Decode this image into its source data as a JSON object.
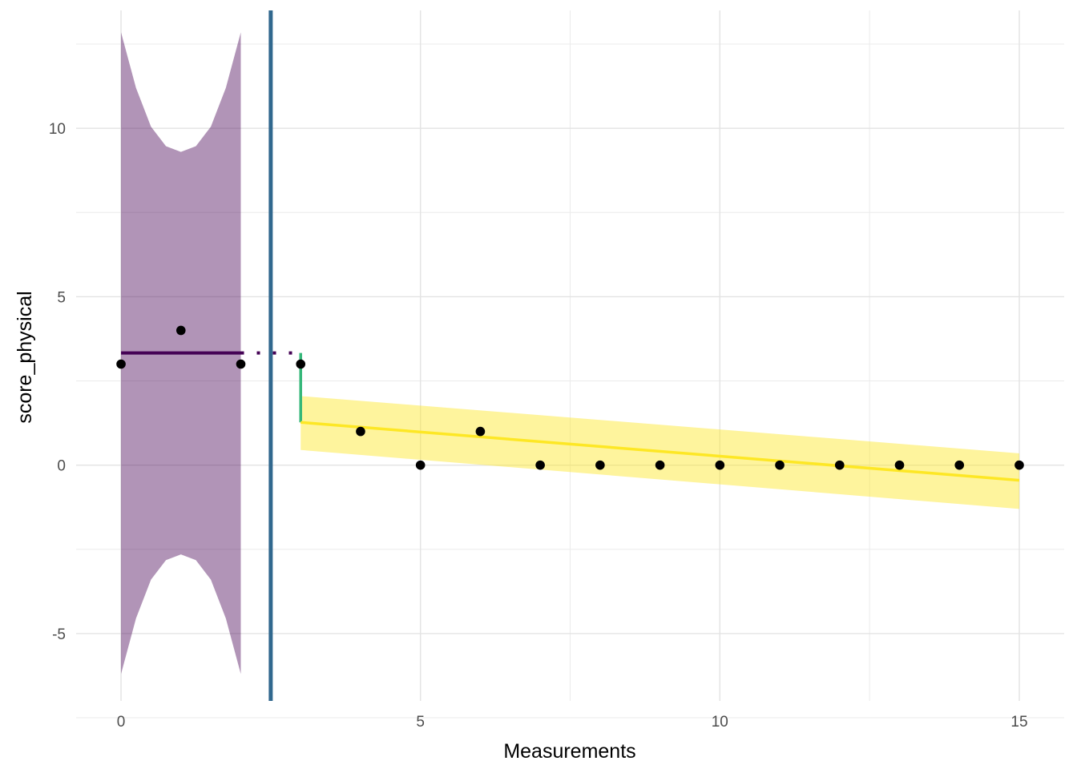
{
  "chart_data": {
    "type": "scatter",
    "title": "",
    "xlabel": "Measurements",
    "ylabel": "score_physical",
    "xlim": [
      -0.75,
      15.75
    ],
    "ylim": [
      -7.0,
      13.5
    ],
    "x_ticks": [
      0,
      5,
      10,
      15
    ],
    "y_ticks": [
      -5,
      0,
      5,
      10
    ],
    "x_tick_labels": [
      "0",
      "5",
      "10",
      "15"
    ],
    "y_tick_labels": [
      "-5",
      "0",
      "5",
      "10"
    ],
    "grid": true,
    "legend": "none",
    "points": {
      "x": [
        0,
        1,
        2,
        3,
        4,
        5,
        6,
        7,
        8,
        9,
        10,
        11,
        12,
        13,
        14,
        15
      ],
      "y": [
        3,
        4,
        3,
        3,
        1,
        0,
        1,
        0,
        0,
        0,
        0,
        0,
        0,
        0,
        0,
        0
      ],
      "color": "#000000"
    },
    "phase_boundary_x": 2.5,
    "baseline_phase": {
      "x_range": [
        0,
        2
      ],
      "mean": 3.33,
      "projection_x_range": [
        2,
        3
      ],
      "ribbon": {
        "x": [
          0,
          0.25,
          0.5,
          0.75,
          1.0,
          1.25,
          1.5,
          1.75,
          2.0
        ],
        "upper": [
          12.85,
          11.2,
          10.05,
          9.47,
          9.3,
          9.47,
          10.05,
          11.2,
          12.85
        ],
        "lower": [
          -6.2,
          -4.55,
          -3.4,
          -2.82,
          -2.65,
          -2.82,
          -3.4,
          -4.55,
          -6.2
        ]
      },
      "color": "#440154"
    },
    "treatment_phase": {
      "x_range": [
        3,
        15
      ],
      "fit": {
        "start": 1.27,
        "end": -0.45
      },
      "ribbon": {
        "x": [
          3,
          15
        ],
        "upper": [
          2.05,
          0.35
        ],
        "lower": [
          0.45,
          -1.3
        ]
      },
      "color": "#fde725"
    },
    "level_change": {
      "x": 3,
      "from": 3.33,
      "to": 1.27,
      "color": "#35b779"
    },
    "boundary_color": "#31688e"
  }
}
